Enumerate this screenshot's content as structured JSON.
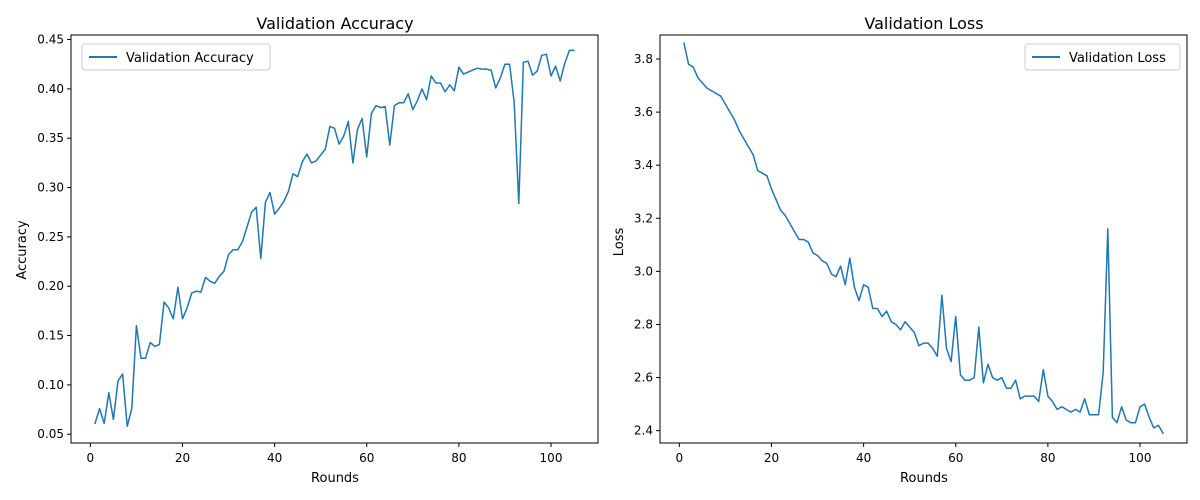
{
  "chart_data": [
    {
      "type": "line",
      "title": "Validation Accuracy",
      "xlabel": "Rounds",
      "ylabel": "Accuracy",
      "xlim": [
        -4.2,
        110.2
      ],
      "ylim": [
        0.0411,
        0.4546
      ],
      "xticks": [
        0,
        20,
        40,
        60,
        80,
        100
      ],
      "yticks": [
        0.05,
        0.1,
        0.15,
        0.2,
        0.25,
        0.3,
        0.35,
        0.4,
        0.45
      ],
      "ytick_labels": [
        "0.05",
        "0.10",
        "0.15",
        "0.20",
        "0.25",
        "0.30",
        "0.35",
        "0.40",
        "0.45"
      ],
      "grid": false,
      "legend_position": "upper-left",
      "series": [
        {
          "name": "Validation Accuracy",
          "color": "#1f77b4",
          "x": [
            1,
            2,
            3,
            4,
            5,
            6,
            7,
            8,
            9,
            10,
            11,
            12,
            13,
            14,
            15,
            16,
            17,
            18,
            19,
            20,
            21,
            22,
            23,
            24,
            25,
            26,
            27,
            28,
            29,
            30,
            31,
            32,
            33,
            34,
            35,
            36,
            37,
            38,
            39,
            40,
            41,
            42,
            43,
            44,
            45,
            46,
            47,
            48,
            49,
            50,
            51,
            52,
            53,
            54,
            55,
            56,
            57,
            58,
            59,
            60,
            61,
            62,
            63,
            64,
            65,
            66,
            67,
            68,
            69,
            70,
            71,
            72,
            73,
            74,
            75,
            76,
            77,
            78,
            79,
            80,
            81,
            82,
            83,
            84,
            85,
            86,
            87,
            88,
            89,
            90,
            91,
            92,
            93,
            94,
            95,
            96,
            97,
            98,
            99,
            100,
            101,
            102,
            103,
            104,
            105
          ],
          "values": [
            0.061,
            0.076,
            0.061,
            0.092,
            0.065,
            0.104,
            0.111,
            0.058,
            0.076,
            0.16,
            0.127,
            0.127,
            0.143,
            0.139,
            0.141,
            0.184,
            0.178,
            0.167,
            0.199,
            0.167,
            0.178,
            0.193,
            0.195,
            0.194,
            0.209,
            0.205,
            0.203,
            0.21,
            0.215,
            0.232,
            0.237,
            0.237,
            0.245,
            0.26,
            0.275,
            0.28,
            0.228,
            0.285,
            0.295,
            0.273,
            0.279,
            0.286,
            0.296,
            0.314,
            0.311,
            0.326,
            0.334,
            0.325,
            0.327,
            0.333,
            0.339,
            0.362,
            0.36,
            0.344,
            0.352,
            0.367,
            0.325,
            0.359,
            0.37,
            0.331,
            0.375,
            0.383,
            0.381,
            0.382,
            0.343,
            0.383,
            0.386,
            0.386,
            0.395,
            0.379,
            0.388,
            0.4,
            0.389,
            0.413,
            0.406,
            0.406,
            0.397,
            0.404,
            0.398,
            0.422,
            0.415,
            0.417,
            0.419,
            0.421,
            0.42,
            0.42,
            0.419,
            0.401,
            0.411,
            0.425,
            0.425,
            0.386,
            0.284,
            0.427,
            0.428,
            0.414,
            0.418,
            0.434,
            0.435,
            0.413,
            0.423,
            0.408,
            0.426,
            0.439,
            0.439
          ]
        }
      ]
    },
    {
      "type": "line",
      "title": "Validation Loss",
      "xlabel": "Rounds",
      "ylabel": "Loss",
      "xlim": [
        -4.2,
        110.2
      ],
      "ylim": [
        2.3535,
        3.8905
      ],
      "xticks": [
        0,
        20,
        40,
        60,
        80,
        100
      ],
      "yticks": [
        2.4,
        2.6,
        2.8,
        3.0,
        3.2,
        3.4,
        3.6,
        3.8
      ],
      "ytick_labels": [
        "2.4",
        "2.6",
        "2.8",
        "3.0",
        "3.2",
        "3.4",
        "3.6",
        "3.8"
      ],
      "grid": false,
      "legend_position": "upper-right",
      "series": [
        {
          "name": "Validation Loss",
          "color": "#1f77b4",
          "x": [
            1,
            2,
            3,
            4,
            5,
            6,
            7,
            8,
            9,
            10,
            11,
            12,
            13,
            14,
            15,
            16,
            17,
            18,
            19,
            20,
            21,
            22,
            23,
            24,
            25,
            26,
            27,
            28,
            29,
            30,
            31,
            32,
            33,
            34,
            35,
            36,
            37,
            38,
            39,
            40,
            41,
            42,
            43,
            44,
            45,
            46,
            47,
            48,
            49,
            50,
            51,
            52,
            53,
            54,
            55,
            56,
            57,
            58,
            59,
            60,
            61,
            62,
            63,
            64,
            65,
            66,
            67,
            68,
            69,
            70,
            71,
            72,
            73,
            74,
            75,
            76,
            77,
            78,
            79,
            80,
            81,
            82,
            83,
            84,
            85,
            86,
            87,
            88,
            89,
            90,
            91,
            92,
            93,
            94,
            95,
            96,
            97,
            98,
            99,
            100,
            101,
            102,
            103,
            104,
            105
          ],
          "values": [
            3.86,
            3.78,
            3.77,
            3.73,
            3.71,
            3.69,
            3.68,
            3.67,
            3.66,
            3.63,
            3.6,
            3.57,
            3.53,
            3.5,
            3.47,
            3.44,
            3.38,
            3.37,
            3.36,
            3.31,
            3.27,
            3.23,
            3.21,
            3.18,
            3.15,
            3.12,
            3.12,
            3.11,
            3.07,
            3.06,
            3.04,
            3.03,
            2.99,
            2.98,
            3.02,
            2.95,
            3.05,
            2.94,
            2.89,
            2.95,
            2.94,
            2.86,
            2.86,
            2.83,
            2.85,
            2.81,
            2.8,
            2.78,
            2.81,
            2.79,
            2.77,
            2.72,
            2.73,
            2.73,
            2.71,
            2.68,
            2.91,
            2.71,
            2.66,
            2.83,
            2.61,
            2.59,
            2.59,
            2.6,
            2.79,
            2.58,
            2.65,
            2.6,
            2.59,
            2.6,
            2.56,
            2.56,
            2.59,
            2.52,
            2.53,
            2.53,
            2.53,
            2.51,
            2.63,
            2.53,
            2.51,
            2.48,
            2.49,
            2.48,
            2.47,
            2.48,
            2.47,
            2.52,
            2.46,
            2.46,
            2.46,
            2.62,
            3.16,
            2.45,
            2.43,
            2.49,
            2.44,
            2.43,
            2.43,
            2.49,
            2.5,
            2.45,
            2.41,
            2.42,
            2.39
          ]
        }
      ]
    }
  ]
}
